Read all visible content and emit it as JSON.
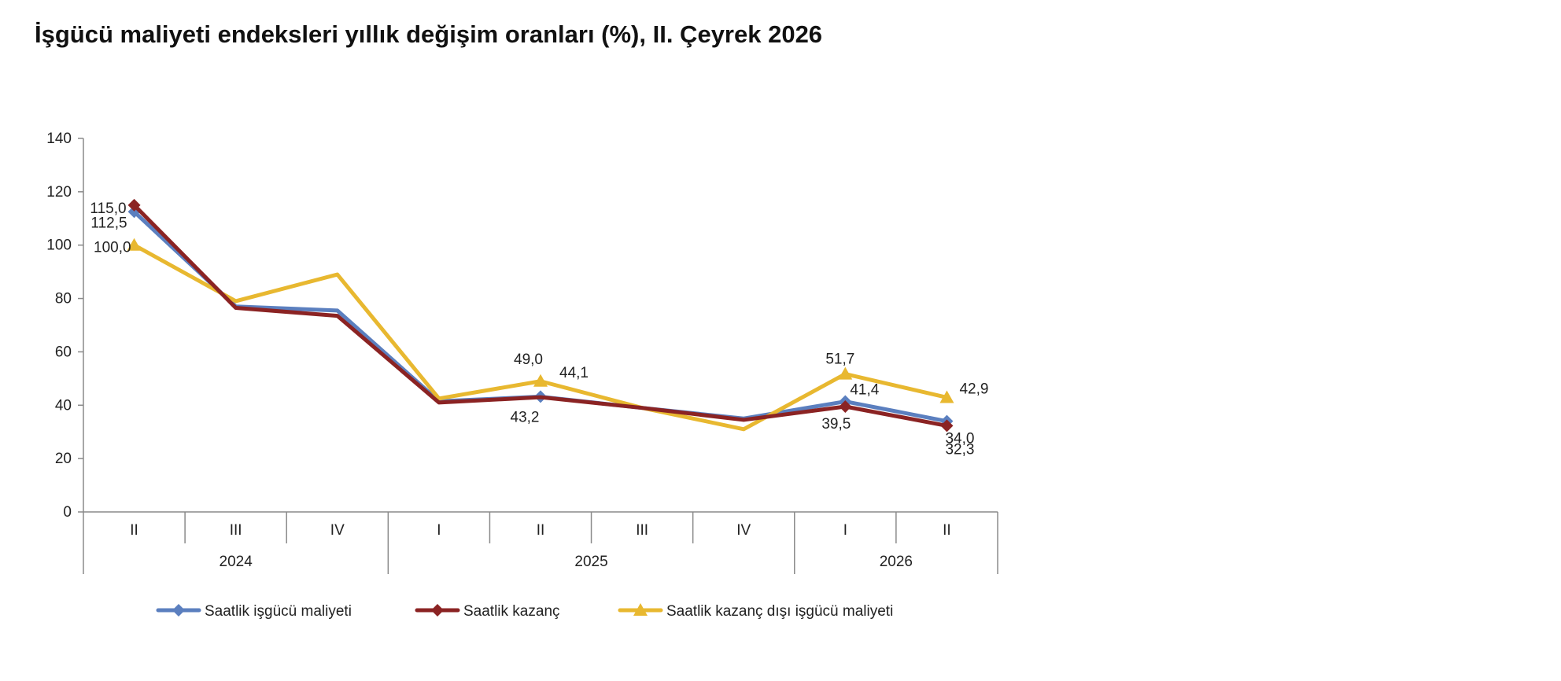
{
  "title": "İşgücü maliyeti endeksleri yıllık değişim oranları (%), II. Çeyrek 2026",
  "chart_data": {
    "type": "line",
    "categories": [
      "II",
      "III",
      "IV",
      "I",
      "II",
      "III",
      "IV",
      "I",
      "II"
    ],
    "groups": [
      {
        "label": "2024",
        "span": 3
      },
      {
        "label": "2025",
        "span": 4
      },
      {
        "label": "2026",
        "span": 2
      }
    ],
    "ylim": [
      0,
      140
    ],
    "yticks": [
      "0",
      "20",
      "40",
      "60",
      "80",
      "100",
      "120",
      "140"
    ],
    "grid": false,
    "legend_position": "bottom",
    "series": [
      {
        "name": "Saatlik işgücü maliyeti",
        "color": "#5b7fbf",
        "marker": "diamond",
        "values": [
          112.5,
          77.0,
          75.5,
          41.5,
          43.2,
          39.0,
          35.0,
          41.4,
          34.0
        ],
        "labels": [
          "112,5",
          "",
          "",
          "",
          "43,2",
          "",
          "",
          "41,4",
          "34,0"
        ]
      },
      {
        "name": "Saatlik kazanç",
        "color": "#8b2323",
        "marker": "diamond",
        "values": [
          115.0,
          76.5,
          73.5,
          41.0,
          43.0,
          39.0,
          34.5,
          39.5,
          32.3
        ],
        "labels": [
          "115,0",
          "",
          "",
          "",
          "",
          "",
          "",
          "39,5",
          "32,3"
        ]
      },
      {
        "name": "Saatlik kazanç dışı işgücü maliyeti",
        "color": "#e8b830",
        "marker": "triangle",
        "values": [
          100.0,
          79.0,
          89.0,
          42.5,
          49.0,
          39.0,
          31.0,
          51.7,
          42.9
        ],
        "labels": [
          "100,0",
          "",
          "",
          "",
          "49,0",
          "",
          "",
          "51,7",
          "42,9"
        ],
        "extra_labels": [
          {
            "index": 4,
            "text": "44,1"
          }
        ]
      }
    ]
  }
}
